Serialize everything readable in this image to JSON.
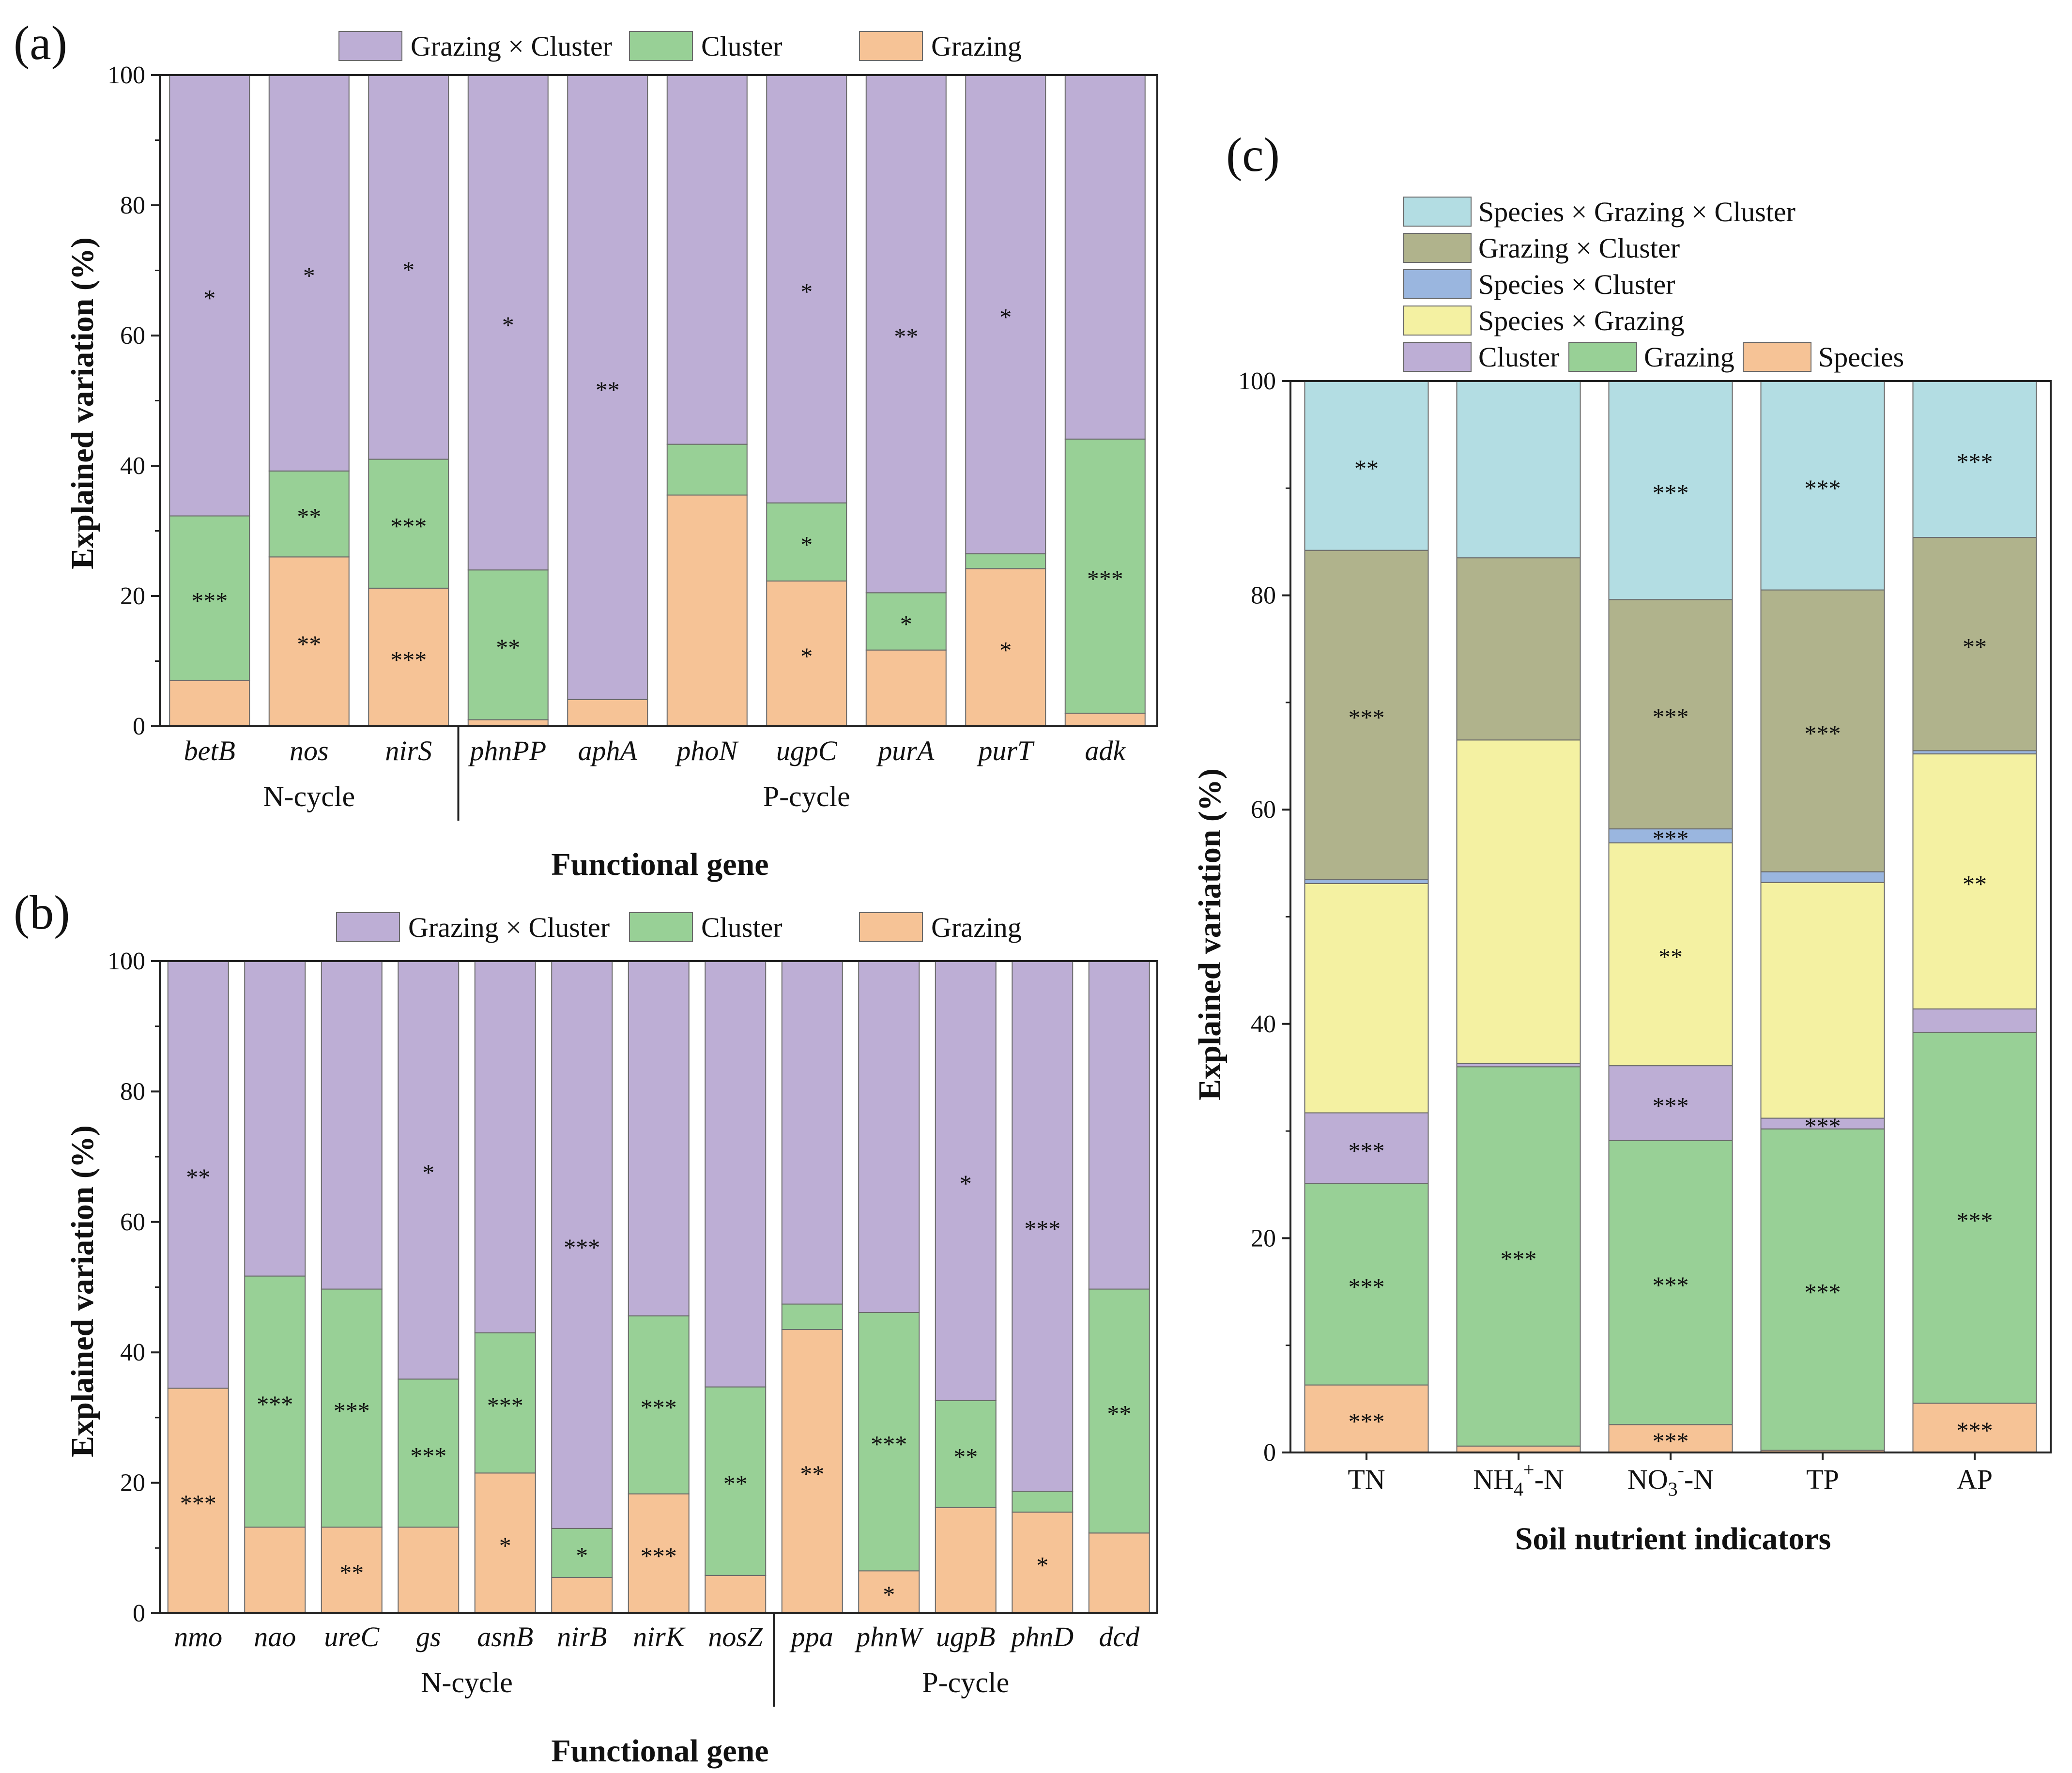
{
  "colors": {
    "species_x_grazing_x_cluster": "#b3dde3",
    "grazing_x_cluster": "#b0b38c",
    "species_x_cluster": "#9ab6df",
    "species_x_grazing": "#f4f1a2",
    "cluster_c": "#bdaed5",
    "grazing_c": "#98d096",
    "species": "#f6c396",
    "ab_grazing_x_cluster": "#bdaed5",
    "ab_cluster": "#98d096",
    "ab_grazing": "#f6c396",
    "stroke": "#6a6a6a"
  },
  "chart_data": [
    {
      "panel": "(a)",
      "type": "bar",
      "stacked": true,
      "ylabel": "Explained variation (%)",
      "xlabel": "Functional gene",
      "ylim": [
        0,
        100
      ],
      "yticks": [
        "0",
        "20",
        "40",
        "60",
        "80",
        "100"
      ],
      "legend": [
        "Grazing × Cluster",
        "Cluster",
        "Grazing"
      ],
      "groups": [
        {
          "label": "N-cycle",
          "count": 3
        },
        {
          "label": "P-cycle",
          "count": 7
        }
      ],
      "categories": [
        "betB",
        "nos",
        "nirS",
        "phnPP",
        "aphA",
        "phoN",
        "ugpC",
        "purA",
        "purT",
        "adk"
      ],
      "series": [
        {
          "name": "Grazing",
          "color_key": "ab_grazing",
          "values": [
            7,
            26,
            21.2,
            1,
            4.1,
            35.5,
            22.3,
            11.7,
            24.2,
            2
          ],
          "sig": [
            "",
            "**",
            "***",
            "",
            "",
            "",
            "*",
            "",
            "*",
            ""
          ]
        },
        {
          "name": "Cluster",
          "color_key": "ab_cluster",
          "values": [
            25.3,
            13.2,
            19.8,
            23,
            0,
            7.8,
            12,
            8.8,
            2.3,
            42.1
          ],
          "sig": [
            "***",
            "**",
            "***",
            "**",
            "",
            "",
            "*",
            "*",
            "",
            "***"
          ]
        },
        {
          "name": "Grazing × Cluster",
          "color_key": "ab_grazing_x_cluster",
          "values": [
            67.7,
            60.8,
            59,
            76,
            95.9,
            56.7,
            65.7,
            79.5,
            73.5,
            55.9
          ],
          "sig": [
            "*",
            "*",
            "*",
            "*",
            "**",
            "",
            "*",
            "**",
            "*",
            ""
          ]
        }
      ]
    },
    {
      "panel": "(b)",
      "type": "bar",
      "stacked": true,
      "ylabel": "Explained variation (%)",
      "xlabel": "Functional gene",
      "ylim": [
        0,
        100
      ],
      "yticks": [
        "0",
        "20",
        "40",
        "60",
        "80",
        "100"
      ],
      "legend": [
        "Grazing × Cluster",
        "Cluster",
        "Grazing"
      ],
      "groups": [
        {
          "label": "N-cycle",
          "count": 8
        },
        {
          "label": "P-cycle",
          "count": 5
        }
      ],
      "categories": [
        "nmo",
        "nao",
        "ureC",
        "gs",
        "asnB",
        "nirB",
        "nirK",
        "nosZ",
        "ppa",
        "phnW",
        "ugpB",
        "phnD",
        "dcd"
      ],
      "series": [
        {
          "name": "Grazing",
          "color_key": "ab_grazing",
          "values": [
            34.5,
            13.2,
            13.2,
            13.2,
            21.5,
            5.5,
            18.3,
            5.8,
            43.5,
            6.5,
            16.2,
            15.5,
            12.3
          ],
          "sig": [
            "***",
            "",
            "**",
            "",
            "*",
            "",
            "***",
            "",
            "**",
            "*",
            "",
            "*",
            ""
          ]
        },
        {
          "name": "Cluster",
          "color_key": "ab_cluster",
          "values": [
            0,
            38.5,
            36.5,
            22.7,
            21.5,
            7.5,
            27.3,
            28.9,
            3.9,
            39.6,
            16.4,
            3.2,
            37.4
          ],
          "sig": [
            "",
            "***",
            "***",
            "***",
            "***",
            "*",
            "***",
            "**",
            "",
            "***",
            "**",
            "",
            "**"
          ]
        },
        {
          "name": "Grazing × Cluster",
          "color_key": "ab_grazing_x_cluster",
          "values": [
            65.5,
            48.3,
            50.3,
            64.1,
            57,
            87,
            54.4,
            65.3,
            52.6,
            53.9,
            67.4,
            81.3,
            50.3
          ],
          "sig": [
            "**",
            "",
            "",
            "*",
            "",
            "***",
            "",
            "",
            "",
            "",
            "*",
            "***",
            ""
          ]
        }
      ]
    },
    {
      "panel": "(c)",
      "type": "bar",
      "stacked": true,
      "ylabel": "Explained variation (%)",
      "xlabel": "Soil nutrient indicators",
      "ylim": [
        0,
        100
      ],
      "yticks": [
        "0",
        "20",
        "40",
        "60",
        "80",
        "100"
      ],
      "legend": [
        "Species × Grazing × Cluster",
        "Grazing × Cluster",
        "Species × Cluster",
        "Species × Grazing",
        "Cluster",
        "Grazing",
        "Species"
      ],
      "categories": [
        {
          "base": "TN",
          "sup": "",
          "sub": "",
          "tail": ""
        },
        {
          "base": "NH",
          "sub": "4",
          "sup": "+",
          "tail": "-N"
        },
        {
          "base": "NO",
          "sub": "3",
          "sup": "-",
          "tail": "-N"
        },
        {
          "base": "TP",
          "sup": "",
          "sub": "",
          "tail": ""
        },
        {
          "base": "AP",
          "sup": "",
          "sub": "",
          "tail": ""
        }
      ],
      "series": [
        {
          "name": "Species",
          "color_key": "species",
          "values": [
            6.3,
            0.6,
            2.6,
            0.2,
            4.6
          ],
          "sig": [
            "***",
            "",
            "***",
            "",
            "***"
          ]
        },
        {
          "name": "Grazing",
          "color_key": "grazing_c",
          "values": [
            18.8,
            35.4,
            26.5,
            30,
            34.6
          ],
          "sig": [
            "***",
            "***",
            "***",
            "***",
            "***"
          ]
        },
        {
          "name": "Cluster",
          "color_key": "cluster_c",
          "values": [
            6.6,
            0.3,
            7,
            1,
            2.2
          ],
          "sig": [
            "***",
            "",
            "***",
            "***",
            ""
          ]
        },
        {
          "name": "Species × Grazing",
          "color_key": "species_x_grazing",
          "values": [
            21.4,
            30.2,
            20.8,
            22,
            23.8
          ],
          "sig": [
            "",
            "",
            "**",
            "",
            "**"
          ]
        },
        {
          "name": "Species × Cluster",
          "color_key": "species_x_cluster",
          "values": [
            0.4,
            0,
            1.3,
            1,
            0.3
          ],
          "sig": [
            "",
            "",
            "***",
            "",
            ""
          ]
        },
        {
          "name": "Grazing × Cluster",
          "color_key": "grazing_x_cluster",
          "values": [
            30.7,
            17,
            21.4,
            26.3,
            19.9
          ],
          "sig": [
            "***",
            "",
            "***",
            "***",
            "**"
          ]
        },
        {
          "name": "Species × Grazing × Cluster",
          "color_key": "species_x_grazing_x_cluster",
          "values": [
            15.8,
            16.5,
            20.4,
            19.5,
            14.6
          ],
          "sig": [
            "**",
            "",
            "***",
            "***",
            "***"
          ]
        }
      ]
    }
  ]
}
